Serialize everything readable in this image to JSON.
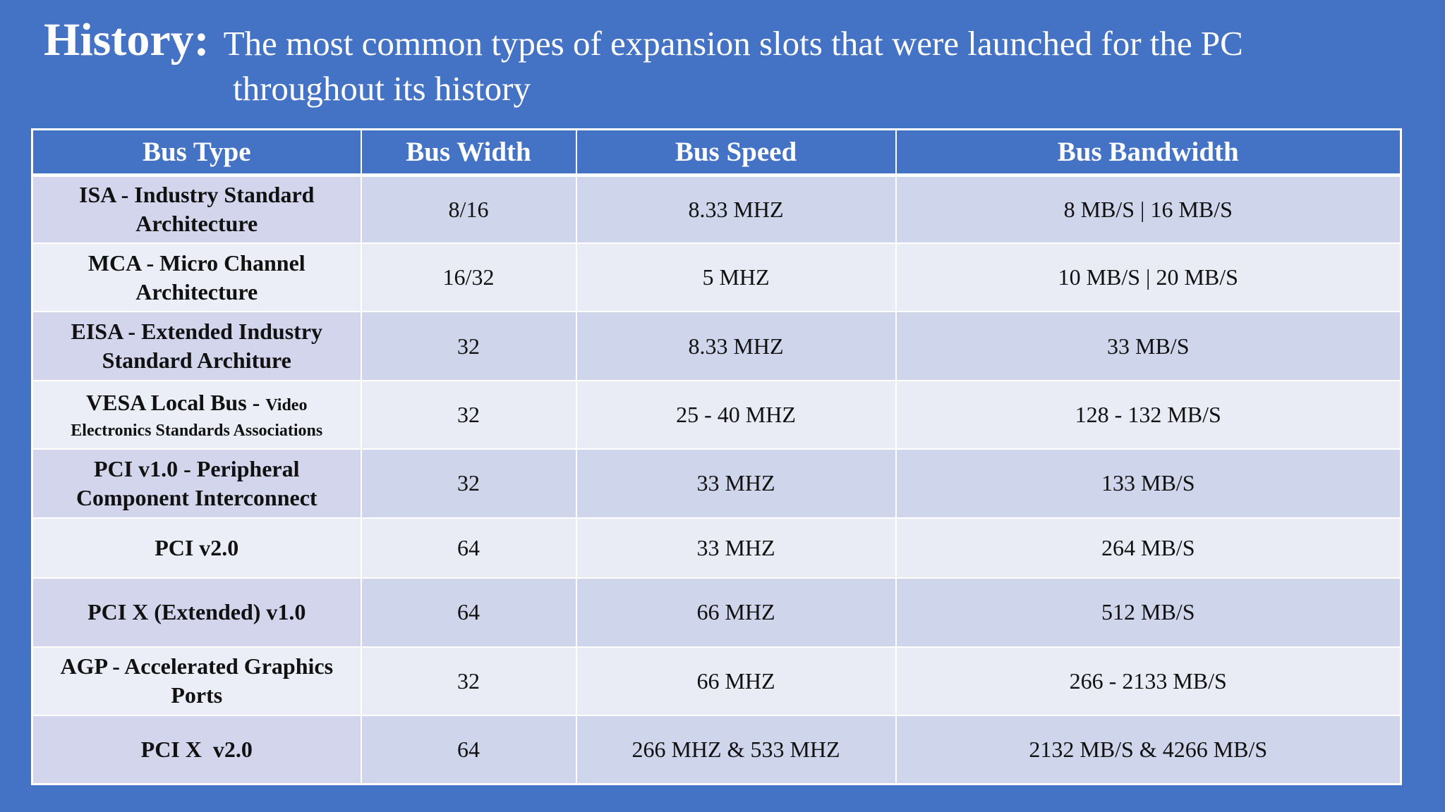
{
  "title": {
    "label": "History:",
    "description_line1": "The most common types of expansion slots that were launched for the PC",
    "description_line2": "throughout its history"
  },
  "colors": {
    "background": "#4472c4",
    "header_text": "#ffffff",
    "row_odd": "#cfd5ea",
    "row_even": "#e9ebf5"
  },
  "table": {
    "headers": {
      "bus_type": "Bus Type",
      "bus_width": "Bus Width",
      "bus_speed": "Bus Speed",
      "bus_bandwidth": "Bus Bandwidth"
    },
    "rows": [
      {
        "bus_type_line1": "ISA - Industry Standard",
        "bus_type_line2": "Architecture",
        "bus_width": "8/16",
        "bus_speed": "8.33 MHZ",
        "bus_bandwidth": "8 MB/S | 16 MB/S"
      },
      {
        "bus_type_line1": "MCA - Micro Channel",
        "bus_type_line2": "Architecture",
        "bus_width": "16/32",
        "bus_speed": "5 MHZ",
        "bus_bandwidth": "10 MB/S | 20 MB/S"
      },
      {
        "bus_type_line1": "EISA - Extended Industry",
        "bus_type_line2": "Standard Architure",
        "bus_width": "32",
        "bus_speed": "8.33 MHZ",
        "bus_bandwidth": "33 MB/S"
      },
      {
        "bus_type_line1": "VESA Local Bus - ",
        "bus_type_line1_small": "Video",
        "bus_type_line2": "Electronics Standards Associations",
        "bus_width": "32",
        "bus_speed": "25 - 40 MHZ",
        "bus_bandwidth": "128 - 132 MB/S"
      },
      {
        "bus_type_line1": "PCI v1.0 - Peripheral",
        "bus_type_line2": "Component Interconnect",
        "bus_width": "32",
        "bus_speed": "33 MHZ",
        "bus_bandwidth": "133 MB/S"
      },
      {
        "bus_type_line1": "PCI v2.0",
        "bus_width": "64",
        "bus_speed": "33 MHZ",
        "bus_bandwidth": "264 MB/S"
      },
      {
        "bus_type_line1": "PCI X (Extended) v1.0",
        "bus_width": "64",
        "bus_speed": "66 MHZ",
        "bus_bandwidth": "512 MB/S"
      },
      {
        "bus_type_line1": "AGP - Accelerated Graphics",
        "bus_type_line2": "Ports",
        "bus_width": "32",
        "bus_speed": "66 MHZ",
        "bus_bandwidth": "266 - 2133 MB/S"
      },
      {
        "bus_type_line1": "PCI X  v2.0",
        "bus_width": "64",
        "bus_speed": "266 MHZ & 533 MHZ",
        "bus_bandwidth": "2132 MB/S & 4266 MB/S"
      }
    ]
  }
}
